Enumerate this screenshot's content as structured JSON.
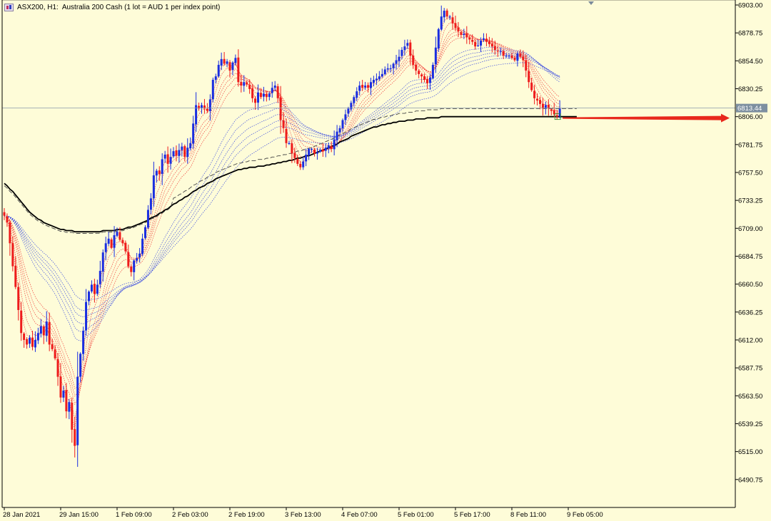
{
  "chart_header": {
    "symbol": "ASX200, H1:",
    "description": "Australia 200 Cash (1 lot = AUD 1 per index point)"
  },
  "watermark": "",
  "colors": {
    "background": "#fefcd8",
    "bull": "#1a2ee0",
    "bear": "#ee1c1c",
    "ma_long": "#000000",
    "ma_fast": "#ee1c1c",
    "ma_slow": "#1a2ee0",
    "price_line": "#8a9aaa",
    "price_label_bg": "#7d8fa0",
    "arrow": "#e8281c"
  },
  "chart_data": {
    "type": "candlestick",
    "title": "ASX200, H1:  Australia 200 Cash (1 lot = AUD 1 per index point)",
    "ylim": [
      6468,
      6906
    ],
    "yticks": [
      6490.75,
      6515.0,
      6539.25,
      6563.5,
      6587.75,
      6612.0,
      6636.25,
      6660.5,
      6684.75,
      6709.0,
      6733.25,
      6757.5,
      6781.75,
      6806.0,
      6830.25,
      6854.5,
      6878.75,
      6903.0
    ],
    "ytick_labels": [
      "6490.75",
      "6515.00",
      "6539.25",
      "6563.50",
      "6587.75",
      "6612.00",
      "6636.25",
      "6660.50",
      "6684.75",
      "6709.00",
      "6733.25",
      "6757.50",
      "6781.75",
      "6806.00",
      "6830.25",
      "6854.50",
      "6878.75",
      "6903.00"
    ],
    "xtick_labels": [
      "28 Jan 2021",
      "29 Jan 15:00",
      "1 Feb 09:00",
      "2 Feb 03:00",
      "2 Feb 19:00",
      "3 Feb 13:00",
      "4 Feb 07:00",
      "5 Feb 01:00",
      "5 Feb 17:00",
      "8 Feb 11:00",
      "9 Feb 05:00"
    ],
    "xtick_bar_index": [
      0,
      20,
      40,
      60,
      80,
      100,
      120,
      140,
      160,
      180,
      200
    ],
    "current_price": 6813.44,
    "current_price_label": "6813.44",
    "grid": false,
    "legend": "none",
    "close": [
      6720,
      6714,
      6696,
      6676,
      6658,
      6638,
      6618,
      6612,
      6608,
      6614,
      6606,
      6612,
      6618,
      6624,
      6616,
      6628,
      6608,
      6604,
      6596,
      6580,
      6562,
      6568,
      6550,
      6558,
      6534,
      6520,
      6580,
      6600,
      6620,
      6645,
      6654,
      6660,
      6652,
      6660,
      6672,
      6688,
      6696,
      6700,
      6692,
      6703,
      6706,
      6699,
      6696,
      6689,
      6676,
      6671,
      6681,
      6683,
      6687,
      6700,
      6710,
      6725,
      6735,
      6755,
      6759,
      6756,
      6769,
      6773,
      6765,
      6771,
      6776,
      6772,
      6777,
      6780,
      6771,
      6779,
      6783,
      6800,
      6816,
      6813,
      6816,
      6813,
      6811,
      6821,
      6838,
      6841,
      6851,
      6856,
      6852,
      6854,
      6846,
      6853,
      6857,
      6836,
      6833,
      6836,
      6834,
      6830,
      6822,
      6818,
      6827,
      6823,
      6826,
      6823,
      6826,
      6831,
      6833,
      6822,
      6803,
      6796,
      6783,
      6783,
      6774,
      6770,
      6765,
      6762,
      6767,
      6773,
      6778,
      6778,
      6774,
      6775,
      6777,
      6776,
      6779,
      6781,
      6778,
      6786,
      6793,
      6796,
      6803,
      6808,
      6813,
      6818,
      6823,
      6828,
      6833,
      6831,
      6833,
      6831,
      6836,
      6838,
      6839,
      6841,
      6843,
      6847,
      6848,
      6848,
      6852,
      6855,
      6858,
      6864,
      6867,
      6870,
      6859,
      6851,
      6846,
      6843,
      6841,
      6838,
      6835,
      6840,
      6851,
      6866,
      6882,
      6893,
      6898,
      6893,
      6893,
      6887,
      6883,
      6880,
      6877,
      6878,
      6875,
      6873,
      6871,
      6867,
      6868,
      6872,
      6874,
      6871,
      6869,
      6867,
      6864,
      6863,
      6863,
      6859,
      6859,
      6859,
      6857,
      6855,
      6861,
      6858,
      6855,
      6846,
      6836,
      6829,
      6822,
      6820,
      6817,
      6813,
      6816,
      6813,
      6811,
      6808,
      6806,
      6813
    ],
    "series": [
      {
        "name": "",
        "type": "sma_long",
        "values": [
          6748,
          6746,
          6743,
          6741,
          6738,
          6735,
          6732,
          6729,
          6726,
          6723,
          6721,
          6719,
          6717,
          6716,
          6714,
          6713,
          6712,
          6711,
          6710,
          6709,
          6708,
          6708,
          6707,
          6707,
          6707,
          6706,
          6706,
          6706,
          6706,
          6706,
          6706,
          6706,
          6706,
          6706,
          6706,
          6707,
          6707,
          6707,
          6707,
          6707,
          6708,
          6708,
          6708,
          6709,
          6710,
          6710,
          6711,
          6712,
          6713,
          6714,
          6715,
          6716,
          6718,
          6719,
          6720,
          6722,
          6723,
          6725,
          6726,
          6728,
          6730,
          6731,
          6733,
          6734,
          6736,
          6737,
          6739,
          6741,
          6742,
          6744,
          6745,
          6746,
          6748,
          6749,
          6750,
          6752,
          6753,
          6754,
          6755,
          6756,
          6757,
          6758,
          6759,
          6760,
          6760,
          6761,
          6761,
          6762,
          6762,
          6762,
          6763,
          6763,
          6763,
          6764,
          6764,
          6765,
          6765,
          6766,
          6766,
          6767,
          6767,
          6768,
          6768,
          6769,
          6770,
          6770,
          6771,
          6772,
          6772,
          6773,
          6774,
          6775,
          6776,
          6777,
          6778,
          6779,
          6780,
          6781,
          6782,
          6784,
          6785,
          6786,
          6787,
          6789,
          6790,
          6791,
          6792,
          6793,
          6794,
          6795,
          6796,
          6797,
          6797,
          6798,
          6799,
          6799,
          6800,
          6800,
          6801,
          6801,
          6802,
          6802,
          6802,
          6803,
          6803,
          6803,
          6804,
          6804,
          6804,
          6804,
          6805,
          6805,
          6805,
          6805,
          6805,
          6806,
          6806,
          6806,
          6806,
          6806,
          6806,
          6806,
          6806,
          6806,
          6806,
          6806,
          6806,
          6806,
          6806,
          6806,
          6806,
          6806,
          6806,
          6806,
          6806,
          6806,
          6806,
          6806,
          6806,
          6806,
          6806,
          6806,
          6806,
          6806,
          6806,
          6806,
          6806,
          6806,
          6806,
          6806,
          6806,
          6806,
          6806,
          6806,
          6806,
          6806,
          6806,
          6806,
          6806,
          6806,
          6806,
          6806,
          6806,
          6806
        ]
      }
    ]
  }
}
